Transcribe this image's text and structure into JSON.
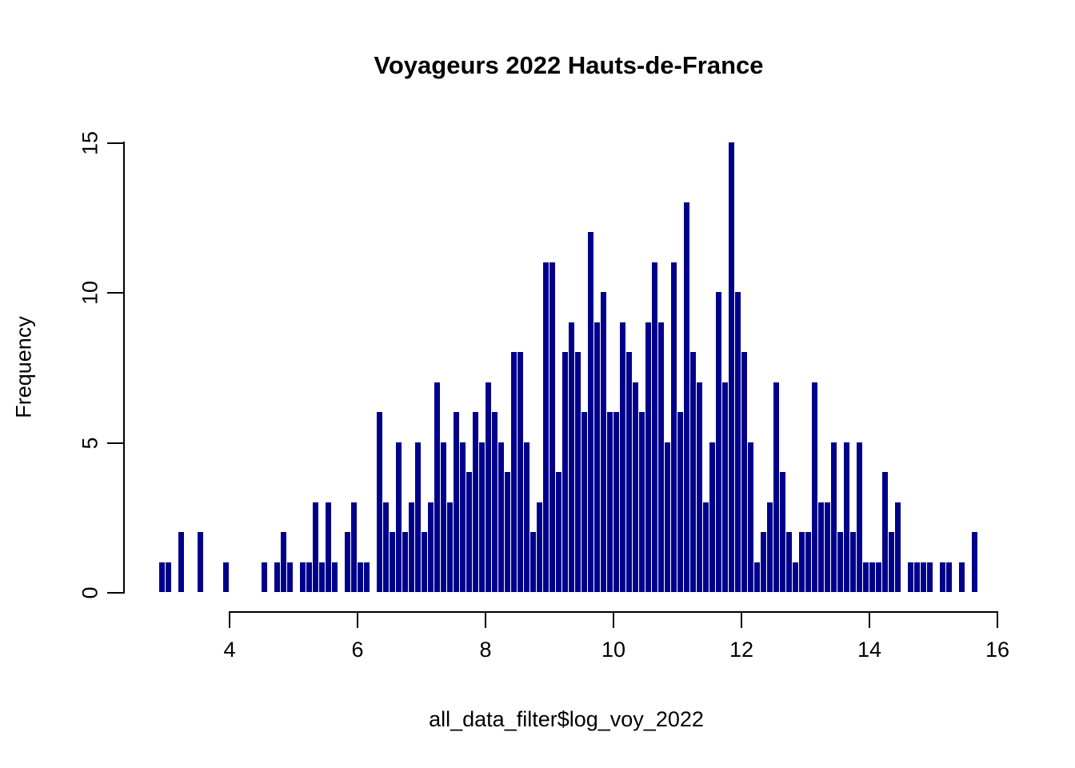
{
  "title": "Voyageurs 2022 Hauts-de-France",
  "x_axis": {
    "label": "all_data_filter$log_voy_2022",
    "tick_labels": [
      "4",
      "6",
      "8",
      "10",
      "12",
      "14",
      "16"
    ]
  },
  "y_axis": {
    "label": "Frequency",
    "tick_labels": [
      "0",
      "5",
      "10",
      "15"
    ]
  },
  "colors": {
    "bar": "#00008B",
    "axis": "#000000",
    "text": "#000000",
    "background": "#FFFFFF"
  },
  "chart_data": {
    "type": "bar",
    "subtype": "histogram",
    "title": "Voyageurs 2022 Hauts-de-France",
    "xlabel": "all_data_filter$log_voy_2022",
    "ylabel": "Frequency",
    "legend": "none",
    "grid": false,
    "bin_width": 0.1,
    "xlim": [
      2.9,
      16
    ],
    "ylim": [
      0,
      15
    ],
    "x_ticks": [
      4,
      6,
      8,
      10,
      12,
      14,
      16
    ],
    "y_ticks": [
      0,
      5,
      10,
      15
    ],
    "bins": [
      [
        2.9,
        1
      ],
      [
        3.0,
        1
      ],
      [
        3.2,
        2
      ],
      [
        3.5,
        2
      ],
      [
        3.9,
        1
      ],
      [
        4.5,
        1
      ],
      [
        4.7,
        1
      ],
      [
        4.8,
        2
      ],
      [
        4.9,
        1
      ],
      [
        5.1,
        1
      ],
      [
        5.2,
        1
      ],
      [
        5.3,
        3
      ],
      [
        5.4,
        1
      ],
      [
        5.5,
        3
      ],
      [
        5.6,
        1
      ],
      [
        5.8,
        2
      ],
      [
        5.9,
        3
      ],
      [
        6.0,
        1
      ],
      [
        6.1,
        1
      ],
      [
        6.3,
        6
      ],
      [
        6.4,
        3
      ],
      [
        6.5,
        2
      ],
      [
        6.6,
        5
      ],
      [
        6.7,
        2
      ],
      [
        6.8,
        3
      ],
      [
        6.9,
        5
      ],
      [
        7.0,
        2
      ],
      [
        7.1,
        3
      ],
      [
        7.2,
        7
      ],
      [
        7.3,
        5
      ],
      [
        7.4,
        3
      ],
      [
        7.5,
        6
      ],
      [
        7.6,
        5
      ],
      [
        7.7,
        4
      ],
      [
        7.8,
        6
      ],
      [
        7.9,
        5
      ],
      [
        8.0,
        7
      ],
      [
        8.1,
        6
      ],
      [
        8.2,
        5
      ],
      [
        8.3,
        4
      ],
      [
        8.4,
        8
      ],
      [
        8.5,
        8
      ],
      [
        8.6,
        5
      ],
      [
        8.7,
        2
      ],
      [
        8.8,
        3
      ],
      [
        8.9,
        11
      ],
      [
        9.0,
        11
      ],
      [
        9.1,
        4
      ],
      [
        9.2,
        8
      ],
      [
        9.3,
        9
      ],
      [
        9.4,
        8
      ],
      [
        9.5,
        6
      ],
      [
        9.6,
        12
      ],
      [
        9.7,
        9
      ],
      [
        9.8,
        10
      ],
      [
        9.9,
        6
      ],
      [
        10.0,
        6
      ],
      [
        10.1,
        9
      ],
      [
        10.2,
        8
      ],
      [
        10.3,
        7
      ],
      [
        10.4,
        6
      ],
      [
        10.5,
        9
      ],
      [
        10.6,
        11
      ],
      [
        10.7,
        9
      ],
      [
        10.8,
        5
      ],
      [
        10.9,
        11
      ],
      [
        11.0,
        6
      ],
      [
        11.1,
        13
      ],
      [
        11.2,
        8
      ],
      [
        11.3,
        7
      ],
      [
        11.4,
        3
      ],
      [
        11.5,
        5
      ],
      [
        11.6,
        10
      ],
      [
        11.7,
        7
      ],
      [
        11.8,
        15
      ],
      [
        11.9,
        10
      ],
      [
        12.0,
        8
      ],
      [
        12.1,
        5
      ],
      [
        12.2,
        1
      ],
      [
        12.3,
        2
      ],
      [
        12.4,
        3
      ],
      [
        12.5,
        7
      ],
      [
        12.6,
        4
      ],
      [
        12.7,
        2
      ],
      [
        12.8,
        1
      ],
      [
        12.9,
        2
      ],
      [
        13.0,
        2
      ],
      [
        13.1,
        7
      ],
      [
        13.2,
        3
      ],
      [
        13.3,
        3
      ],
      [
        13.4,
        5
      ],
      [
        13.5,
        2
      ],
      [
        13.6,
        5
      ],
      [
        13.7,
        2
      ],
      [
        13.8,
        5
      ],
      [
        13.9,
        1
      ],
      [
        14.0,
        1
      ],
      [
        14.1,
        1
      ],
      [
        14.2,
        4
      ],
      [
        14.3,
        2
      ],
      [
        14.4,
        3
      ],
      [
        14.6,
        1
      ],
      [
        14.7,
        1
      ],
      [
        14.8,
        1
      ],
      [
        14.9,
        1
      ],
      [
        15.1,
        1
      ],
      [
        15.2,
        1
      ],
      [
        15.4,
        1
      ],
      [
        15.6,
        2
      ]
    ]
  }
}
